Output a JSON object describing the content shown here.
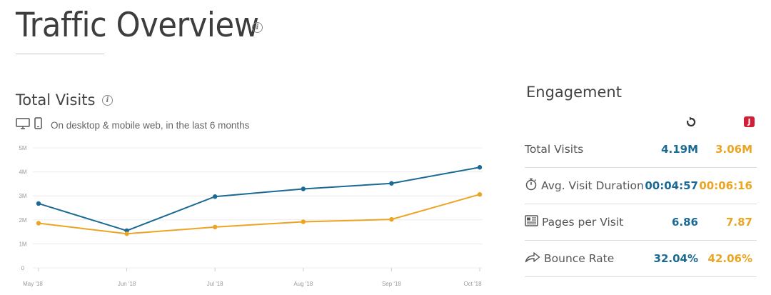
{
  "header": {
    "title": "Traffic Overview"
  },
  "visits": {
    "title": "Total Visits",
    "subtitle": "On desktop & mobile web, in the last 6 months"
  },
  "colors": {
    "series_a": "#1b6a93",
    "series_b": "#eba523",
    "grid": "#ececec",
    "red_badge": "#d21f35"
  },
  "chart_data": {
    "type": "line",
    "x": [
      "May '18",
      "Jun '18",
      "Jul '18",
      "Aug '18",
      "Sep '18",
      "Oct '18"
    ],
    "y_ticks": [
      "0",
      "1M",
      "2M",
      "3M",
      "4M",
      "5M"
    ],
    "ylim": [
      0,
      5
    ],
    "grid": true,
    "series": [
      {
        "values": [
          2.68,
          1.55,
          2.97,
          3.29,
          3.52,
          4.19
        ],
        "color": "#1b6a93"
      },
      {
        "values": [
          1.86,
          1.42,
          1.7,
          1.92,
          2.02,
          3.06
        ],
        "color": "#eba523"
      }
    ]
  },
  "engagement": {
    "title": "Engagement",
    "rows": [
      {
        "label": "Total Visits",
        "icon": "",
        "a": "4.19M",
        "b": "3.06M"
      },
      {
        "label": "Avg. Visit Duration",
        "icon": "stopwatch-icon",
        "a": "00:04:57",
        "b": "00:06:16"
      },
      {
        "label": "Pages per Visit",
        "icon": "pages-icon",
        "a": "6.86",
        "b": "7.87"
      },
      {
        "label": "Bounce Rate",
        "icon": "share-arrow-icon",
        "a": "32.04%",
        "b": "42.06%"
      }
    ]
  }
}
